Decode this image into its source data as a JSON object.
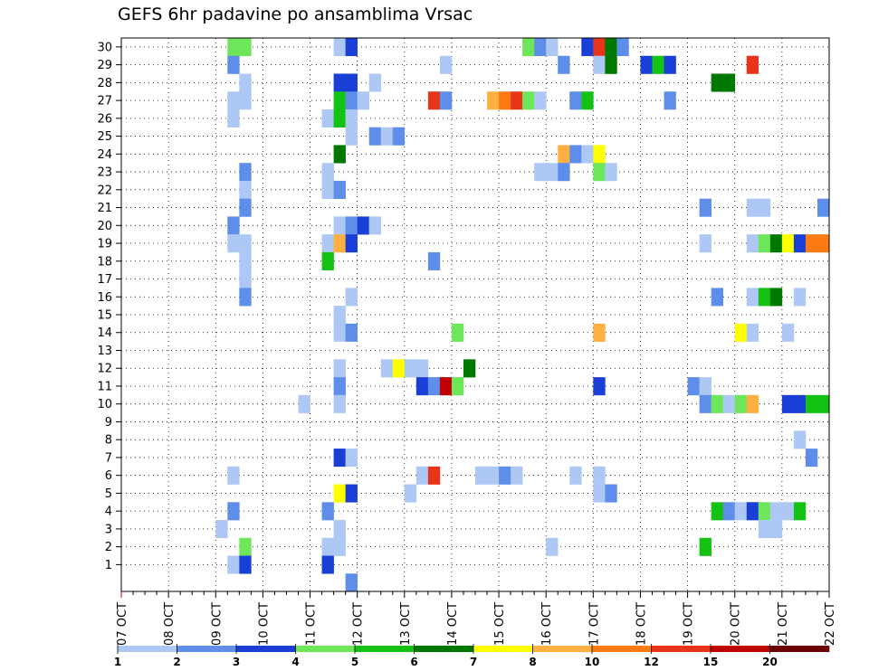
{
  "chart_data": {
    "type": "heatmap",
    "title": "GEFS 6hr padavine po ansamblima Vrsac",
    "xlabel": "",
    "ylabel": "",
    "x_ticks": [
      "07 OCT",
      "08 OCT",
      "09 OCT",
      "10 OCT",
      "11 OCT",
      "12 OCT",
      "13 OCT",
      "14 OCT",
      "15 OCT",
      "16 OCT",
      "17 OCT",
      "18 OCT",
      "19 OCT",
      "20 OCT",
      "21 OCT",
      "22 OCT"
    ],
    "y_ticks": [
      1,
      2,
      3,
      4,
      5,
      6,
      7,
      8,
      9,
      10,
      11,
      12,
      13,
      14,
      15,
      16,
      17,
      18,
      19,
      20,
      21,
      22,
      23,
      24,
      25,
      26,
      27,
      28,
      29,
      30
    ],
    "x_steps_per_day": 4,
    "grid": true,
    "colorbar": {
      "labels": [
        "1",
        "2",
        "3",
        "4",
        "5",
        "6",
        "7",
        "8",
        "10",
        "12",
        "15",
        "20"
      ],
      "colors": [
        "#aec8f5",
        "#5e8eea",
        "#1a3fd6",
        "#6ee65a",
        "#14c214",
        "#007800",
        "#ffff00",
        "#ffb040",
        "#ff7a10",
        "#e83418",
        "#c00000",
        "#6c0000"
      ]
    },
    "cells": [
      {
        "member": 30,
        "step": [
          9,
          10
        ],
        "level": 4
      },
      {
        "member": 30,
        "step": [
          18
        ],
        "level": 1
      },
      {
        "member": 30,
        "step": [
          19
        ],
        "level": 3
      },
      {
        "member": 30,
        "step": [
          34
        ],
        "level": 4
      },
      {
        "member": 30,
        "step": [
          35
        ],
        "level": 2
      },
      {
        "member": 30,
        "step": [
          36
        ],
        "level": 1
      },
      {
        "member": 30,
        "step": [
          39
        ],
        "level": 3
      },
      {
        "member": 30,
        "step": [
          40
        ],
        "level": 10
      },
      {
        "member": 30,
        "step": [
          41
        ],
        "level": 6
      },
      {
        "member": 30,
        "step": [
          42
        ],
        "level": 2
      },
      {
        "member": 29,
        "step": [
          9
        ],
        "level": 2
      },
      {
        "member": 29,
        "step": [
          27
        ],
        "level": 1
      },
      {
        "member": 29,
        "step": [
          37
        ],
        "level": 2
      },
      {
        "member": 29,
        "step": [
          40
        ],
        "level": 1
      },
      {
        "member": 29,
        "step": [
          41
        ],
        "level": 6
      },
      {
        "member": 29,
        "step": [
          44
        ],
        "level": 3
      },
      {
        "member": 29,
        "step": [
          45
        ],
        "level": 5
      },
      {
        "member": 29,
        "step": [
          46
        ],
        "level": 3
      },
      {
        "member": 29,
        "step": [
          53
        ],
        "level": 10
      },
      {
        "member": 28,
        "step": [
          10
        ],
        "level": 1
      },
      {
        "member": 28,
        "step": [
          18,
          19
        ],
        "level": 3
      },
      {
        "member": 28,
        "step": [
          21
        ],
        "level": 1
      },
      {
        "member": 28,
        "step": [
          50,
          51
        ],
        "level": 6
      },
      {
        "member": 27,
        "step": [
          9,
          10
        ],
        "level": 1
      },
      {
        "member": 27,
        "step": [
          18
        ],
        "level": 5
      },
      {
        "member": 27,
        "step": [
          19
        ],
        "level": 2
      },
      {
        "member": 27,
        "step": [
          20
        ],
        "level": 1
      },
      {
        "member": 27,
        "step": [
          26
        ],
        "level": 10
      },
      {
        "member": 27,
        "step": [
          27
        ],
        "level": 2
      },
      {
        "member": 27,
        "step": [
          31
        ],
        "level": 8
      },
      {
        "member": 27,
        "step": [
          32
        ],
        "level": 9
      },
      {
        "member": 27,
        "step": [
          33
        ],
        "level": 10
      },
      {
        "member": 27,
        "step": [
          34
        ],
        "level": 4
      },
      {
        "member": 27,
        "step": [
          35
        ],
        "level": 1
      },
      {
        "member": 27,
        "step": [
          38
        ],
        "level": 2
      },
      {
        "member": 27,
        "step": [
          39
        ],
        "level": 5
      },
      {
        "member": 27,
        "step": [
          46
        ],
        "level": 2
      },
      {
        "member": 26,
        "step": [
          9
        ],
        "level": 1
      },
      {
        "member": 26,
        "step": [
          17
        ],
        "level": 1
      },
      {
        "member": 26,
        "step": [
          18
        ],
        "level": 5
      },
      {
        "member": 26,
        "step": [
          19
        ],
        "level": 1
      },
      {
        "member": 25,
        "step": [
          19
        ],
        "level": 1
      },
      {
        "member": 25,
        "step": [
          21
        ],
        "level": 2
      },
      {
        "member": 25,
        "step": [
          22
        ],
        "level": 1
      },
      {
        "member": 25,
        "step": [
          23
        ],
        "level": 2
      },
      {
        "member": 24,
        "step": [
          18
        ],
        "level": 6
      },
      {
        "member": 24,
        "step": [
          37
        ],
        "level": 8
      },
      {
        "member": 24,
        "step": [
          38
        ],
        "level": 2
      },
      {
        "member": 24,
        "step": [
          39
        ],
        "level": 1
      },
      {
        "member": 24,
        "step": [
          40
        ],
        "level": 7
      },
      {
        "member": 23,
        "step": [
          10
        ],
        "level": 2
      },
      {
        "member": 23,
        "step": [
          17
        ],
        "level": 1
      },
      {
        "member": 23,
        "step": [
          35,
          36
        ],
        "level": 1
      },
      {
        "member": 23,
        "step": [
          37
        ],
        "level": 2
      },
      {
        "member": 23,
        "step": [
          40
        ],
        "level": 4
      },
      {
        "member": 23,
        "step": [
          41
        ],
        "level": 1
      },
      {
        "member": 22,
        "step": [
          10
        ],
        "level": 1
      },
      {
        "member": 22,
        "step": [
          17
        ],
        "level": 1
      },
      {
        "member": 22,
        "step": [
          18
        ],
        "level": 2
      },
      {
        "member": 21,
        "step": [
          10
        ],
        "level": 2
      },
      {
        "member": 21,
        "step": [
          49
        ],
        "level": 2
      },
      {
        "member": 21,
        "step": [
          53,
          54
        ],
        "level": 1
      },
      {
        "member": 21,
        "step": [
          59
        ],
        "level": 2
      },
      {
        "member": 20,
        "step": [
          9
        ],
        "level": 2
      },
      {
        "member": 20,
        "step": [
          18
        ],
        "level": 1
      },
      {
        "member": 20,
        "step": [
          19
        ],
        "level": 2
      },
      {
        "member": 20,
        "step": [
          20
        ],
        "level": 3
      },
      {
        "member": 20,
        "step": [
          21
        ],
        "level": 1
      },
      {
        "member": 19,
        "step": [
          9,
          10
        ],
        "level": 1
      },
      {
        "member": 19,
        "step": [
          17
        ],
        "level": 1
      },
      {
        "member": 19,
        "step": [
          18
        ],
        "level": 8
      },
      {
        "member": 19,
        "step": [
          19
        ],
        "level": 3
      },
      {
        "member": 19,
        "step": [
          49
        ],
        "level": 1
      },
      {
        "member": 19,
        "step": [
          53
        ],
        "level": 1
      },
      {
        "member": 19,
        "step": [
          54
        ],
        "level": 4
      },
      {
        "member": 19,
        "step": [
          55
        ],
        "level": 6
      },
      {
        "member": 19,
        "step": [
          56
        ],
        "level": 7
      },
      {
        "member": 19,
        "step": [
          57
        ],
        "level": 3
      },
      {
        "member": 19,
        "step": [
          58,
          59
        ],
        "level": 9
      },
      {
        "member": 18,
        "step": [
          10
        ],
        "level": 1
      },
      {
        "member": 18,
        "step": [
          17
        ],
        "level": 5
      },
      {
        "member": 18,
        "step": [
          26
        ],
        "level": 2
      },
      {
        "member": 17,
        "step": [
          10
        ],
        "level": 1
      },
      {
        "member": 16,
        "step": [
          10
        ],
        "level": 2
      },
      {
        "member": 16,
        "step": [
          19
        ],
        "level": 1
      },
      {
        "member": 16,
        "step": [
          50
        ],
        "level": 2
      },
      {
        "member": 16,
        "step": [
          53
        ],
        "level": 1
      },
      {
        "member": 16,
        "step": [
          54
        ],
        "level": 5
      },
      {
        "member": 16,
        "step": [
          55
        ],
        "level": 6
      },
      {
        "member": 16,
        "step": [
          57
        ],
        "level": 1
      },
      {
        "member": 15,
        "step": [
          18
        ],
        "level": 1
      },
      {
        "member": 14,
        "step": [
          18
        ],
        "level": 1
      },
      {
        "member": 14,
        "step": [
          19
        ],
        "level": 2
      },
      {
        "member": 14,
        "step": [
          28
        ],
        "level": 4
      },
      {
        "member": 14,
        "step": [
          40
        ],
        "level": 8
      },
      {
        "member": 14,
        "step": [
          52
        ],
        "level": 7
      },
      {
        "member": 14,
        "step": [
          53
        ],
        "level": 1
      },
      {
        "member": 14,
        "step": [
          56
        ],
        "level": 1
      },
      {
        "member": 12,
        "step": [
          18
        ],
        "level": 1
      },
      {
        "member": 12,
        "step": [
          22
        ],
        "level": 1
      },
      {
        "member": 12,
        "step": [
          23
        ],
        "level": 7
      },
      {
        "member": 12,
        "step": [
          24,
          25
        ],
        "level": 1
      },
      {
        "member": 12,
        "step": [
          29
        ],
        "level": 6
      },
      {
        "member": 11,
        "step": [
          18
        ],
        "level": 2
      },
      {
        "member": 11,
        "step": [
          25
        ],
        "level": 3
      },
      {
        "member": 11,
        "step": [
          26
        ],
        "level": 2
      },
      {
        "member": 11,
        "step": [
          27
        ],
        "level": 11
      },
      {
        "member": 11,
        "step": [
          28
        ],
        "level": 4
      },
      {
        "member": 11,
        "step": [
          40
        ],
        "level": 3
      },
      {
        "member": 11,
        "step": [
          48
        ],
        "level": 2
      },
      {
        "member": 11,
        "step": [
          49
        ],
        "level": 1
      },
      {
        "member": 10,
        "step": [
          15
        ],
        "level": 1
      },
      {
        "member": 10,
        "step": [
          18
        ],
        "level": 1
      },
      {
        "member": 10,
        "step": [
          49
        ],
        "level": 2
      },
      {
        "member": 10,
        "step": [
          50
        ],
        "level": 4
      },
      {
        "member": 10,
        "step": [
          51
        ],
        "level": 1
      },
      {
        "member": 10,
        "step": [
          52
        ],
        "level": 4
      },
      {
        "member": 10,
        "step": [
          53
        ],
        "level": 8
      },
      {
        "member": 10,
        "step": [
          56
        ],
        "level": 3
      },
      {
        "member": 10,
        "step": [
          57
        ],
        "level": 3
      },
      {
        "member": 10,
        "step": [
          58,
          59
        ],
        "level": 5
      },
      {
        "member": 8,
        "step": [
          57
        ],
        "level": 1
      },
      {
        "member": 7,
        "step": [
          18
        ],
        "level": 3
      },
      {
        "member": 7,
        "step": [
          19
        ],
        "level": 1
      },
      {
        "member": 7,
        "step": [
          58
        ],
        "level": 2
      },
      {
        "member": 6,
        "step": [
          9
        ],
        "level": 1
      },
      {
        "member": 6,
        "step": [
          25
        ],
        "level": 1
      },
      {
        "member": 6,
        "step": [
          26
        ],
        "level": 10
      },
      {
        "member": 6,
        "step": [
          30,
          31
        ],
        "level": 1
      },
      {
        "member": 6,
        "step": [
          32
        ],
        "level": 2
      },
      {
        "member": 6,
        "step": [
          33
        ],
        "level": 1
      },
      {
        "member": 6,
        "step": [
          38
        ],
        "level": 1
      },
      {
        "member": 6,
        "step": [
          40
        ],
        "level": 1
      },
      {
        "member": 5,
        "step": [
          18
        ],
        "level": 7
      },
      {
        "member": 5,
        "step": [
          19
        ],
        "level": 3
      },
      {
        "member": 5,
        "step": [
          24
        ],
        "level": 1
      },
      {
        "member": 5,
        "step": [
          40
        ],
        "level": 1
      },
      {
        "member": 5,
        "step": [
          41
        ],
        "level": 2
      },
      {
        "member": 4,
        "step": [
          9
        ],
        "level": 2
      },
      {
        "member": 4,
        "step": [
          17
        ],
        "level": 2
      },
      {
        "member": 4,
        "step": [
          50
        ],
        "level": 5
      },
      {
        "member": 4,
        "step": [
          51
        ],
        "level": 2
      },
      {
        "member": 4,
        "step": [
          52
        ],
        "level": 1
      },
      {
        "member": 4,
        "step": [
          53
        ],
        "level": 3
      },
      {
        "member": 4,
        "step": [
          54
        ],
        "level": 4
      },
      {
        "member": 4,
        "step": [
          55
        ],
        "level": 1
      },
      {
        "member": 4,
        "step": [
          56
        ],
        "level": 1
      },
      {
        "member": 4,
        "step": [
          57
        ],
        "level": 5
      },
      {
        "member": 3,
        "step": [
          8
        ],
        "level": 1
      },
      {
        "member": 3,
        "step": [
          18
        ],
        "level": 1
      },
      {
        "member": 3,
        "step": [
          54,
          55
        ],
        "level": 1
      },
      {
        "member": 2,
        "step": [
          10
        ],
        "level": 4
      },
      {
        "member": 2,
        "step": [
          17,
          18
        ],
        "level": 1
      },
      {
        "member": 2,
        "step": [
          36
        ],
        "level": 1
      },
      {
        "member": 2,
        "step": [
          49
        ],
        "level": 5
      },
      {
        "member": 1,
        "step": [
          9
        ],
        "level": 1
      },
      {
        "member": 1,
        "step": [
          10
        ],
        "level": 3
      },
      {
        "member": 1,
        "step": [
          17
        ],
        "level": 3
      },
      {
        "member": 0,
        "step": [
          19
        ],
        "level": 2
      }
    ]
  }
}
